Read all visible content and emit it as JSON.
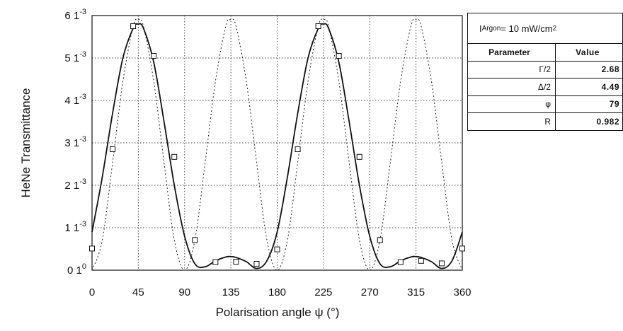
{
  "chart_data": {
    "type": "line",
    "title": "",
    "xlabel": "Polarisation angle  ψ (°)",
    "ylabel": "HeNe  Transmittance",
    "xlim": [
      0,
      360
    ],
    "ylim": [
      0,
      0.006
    ],
    "grid": true,
    "x_ticks": [
      0,
      45,
      90,
      135,
      180,
      225,
      270,
      315,
      360
    ],
    "x_tick_labels": [
      "0",
      "45",
      "90",
      "135",
      "180",
      "225",
      "270",
      "315",
      "360"
    ],
    "y_ticks": [
      0,
      0.001,
      0.002,
      0.003,
      0.004,
      0.005,
      0.006
    ],
    "y_tick_labels": [
      {
        "mant": "0 1",
        "exp": "0"
      },
      {
        "mant": "1 1",
        "exp": "-3"
      },
      {
        "mant": "2 1",
        "exp": "-3"
      },
      {
        "mant": "3 1",
        "exp": "-3"
      },
      {
        "mant": "4 1",
        "exp": "-3"
      },
      {
        "mant": "5 1",
        "exp": "-3"
      },
      {
        "mant": "6 1",
        "exp": "-3"
      }
    ],
    "series": [
      {
        "style": "markers",
        "x": [
          0,
          20,
          40,
          60,
          80,
          100,
          120,
          140,
          160,
          180,
          200,
          220,
          240,
          260,
          280,
          300,
          320,
          340,
          360
        ],
        "y": [
          0.00051,
          0.00285,
          0.00575,
          0.00505,
          0.00267,
          0.00071,
          0.00019,
          0.0002,
          0.00015,
          0.00049,
          0.00285,
          0.00575,
          0.00505,
          0.00267,
          0.00071,
          0.00019,
          0.00022,
          0.00016,
          0.00051
        ]
      },
      {
        "style": "solid",
        "x": [
          0,
          10,
          20,
          30,
          40,
          45,
          50,
          60,
          70,
          80,
          90,
          100,
          110,
          120,
          130,
          135,
          140,
          150,
          160,
          170,
          180,
          190,
          200,
          210,
          220,
          225,
          230,
          240,
          250,
          260,
          270,
          280,
          290,
          300,
          310,
          315,
          320,
          330,
          340,
          350,
          360
        ],
        "y": [
          0.0009,
          0.0022,
          0.0037,
          0.005,
          0.0057,
          0.0058,
          0.0057,
          0.0049,
          0.0035,
          0.002,
          0.0008,
          0.00015,
          8e-05,
          0.00022,
          0.00031,
          0.00032,
          0.0003,
          0.0002,
          4e-05,
          0.00022,
          0.0009,
          0.0022,
          0.0037,
          0.005,
          0.0057,
          0.0058,
          0.0057,
          0.0049,
          0.0035,
          0.002,
          0.0008,
          0.00015,
          8e-05,
          0.00022,
          0.00031,
          0.00032,
          0.0003,
          0.0002,
          4e-05,
          0.00022,
          0.0009
        ]
      },
      {
        "style": "dotted",
        "x": [
          0,
          10,
          20,
          30,
          40,
          45,
          50,
          60,
          70,
          80,
          90,
          100,
          110,
          120,
          130,
          135,
          140,
          150,
          160,
          170,
          180,
          190,
          200,
          210,
          220,
          225,
          230,
          240,
          250,
          260,
          270,
          280,
          290,
          300,
          310,
          315,
          320,
          330,
          340,
          350,
          360
        ],
        "y": [
          0,
          0.00071,
          0.00254,
          0.00445,
          0.00575,
          0.0059,
          0.00575,
          0.00445,
          0.00254,
          0.00071,
          0,
          0.00071,
          0.00254,
          0.00445,
          0.00575,
          0.0059,
          0.00575,
          0.00445,
          0.00254,
          0.00071,
          0,
          0.00071,
          0.00254,
          0.00445,
          0.00575,
          0.0059,
          0.00575,
          0.00445,
          0.00254,
          0.00071,
          0,
          0.00071,
          0.00254,
          0.00445,
          0.00575,
          0.0059,
          0.00575,
          0.00445,
          0.00254,
          0.00071,
          0
        ]
      }
    ],
    "table": {
      "header_main": "I",
      "header_sub": "Argon",
      "header_rest": " = 10  mW/cm",
      "header_sup": "2",
      "col1": "Parameter",
      "col2": "Value",
      "rows": [
        {
          "param": "Γ/2",
          "value": "2.68"
        },
        {
          "param": "Δ/2",
          "value": "4.49"
        },
        {
          "param": "φ",
          "value": "79"
        },
        {
          "param": "R",
          "value": "0.982"
        }
      ]
    }
  }
}
